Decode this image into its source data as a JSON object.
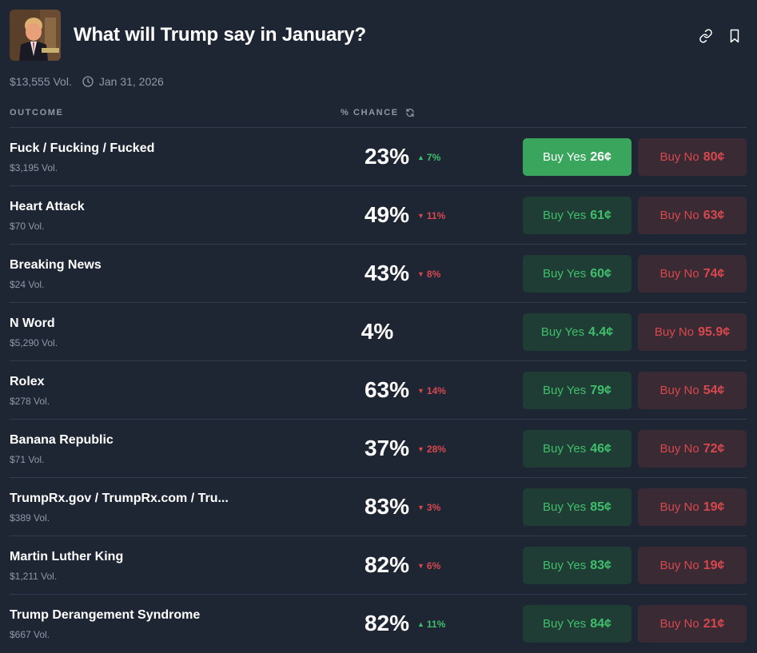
{
  "header": {
    "title": "What will Trump say in January?",
    "volume": "$13,555 Vol.",
    "end_date": "Jan 31, 2026"
  },
  "columns": {
    "outcome": "OUTCOME",
    "chance": "% CHANCE"
  },
  "colors": {
    "background": "#1e2634",
    "yes": "#3fbf6b",
    "no": "#d7484e"
  },
  "rows": [
    {
      "name": "Fuck / Fucking / Fucked",
      "volume": "$3,195 Vol.",
      "chance": "23%",
      "delta": "7%",
      "direction": "up",
      "yes_label": "Buy Yes",
      "yes_price": "26¢",
      "no_label": "Buy No",
      "no_price": "80¢",
      "yes_active": true
    },
    {
      "name": "Heart Attack",
      "volume": "$70 Vol.",
      "chance": "49%",
      "delta": "11%",
      "direction": "down",
      "yes_label": "Buy Yes",
      "yes_price": "61¢",
      "no_label": "Buy No",
      "no_price": "63¢"
    },
    {
      "name": "Breaking News",
      "volume": "$24 Vol.",
      "chance": "43%",
      "delta": "8%",
      "direction": "down",
      "yes_label": "Buy Yes",
      "yes_price": "60¢",
      "no_label": "Buy No",
      "no_price": "74¢"
    },
    {
      "name": "N Word",
      "volume": "$5,290 Vol.",
      "chance": "4%",
      "delta": "",
      "direction": "none",
      "yes_label": "Buy Yes",
      "yes_price": "4.4¢",
      "no_label": "Buy No",
      "no_price": "95.9¢"
    },
    {
      "name": "Rolex",
      "volume": "$278 Vol.",
      "chance": "63%",
      "delta": "14%",
      "direction": "down",
      "yes_label": "Buy Yes",
      "yes_price": "79¢",
      "no_label": "Buy No",
      "no_price": "54¢"
    },
    {
      "name": "Banana Republic",
      "volume": "$71 Vol.",
      "chance": "37%",
      "delta": "28%",
      "direction": "down",
      "yes_label": "Buy Yes",
      "yes_price": "46¢",
      "no_label": "Buy No",
      "no_price": "72¢"
    },
    {
      "name": "TrumpRx.gov / TrumpRx.com / Tru...",
      "volume": "$389 Vol.",
      "chance": "83%",
      "delta": "3%",
      "direction": "down",
      "yes_label": "Buy Yes",
      "yes_price": "85¢",
      "no_label": "Buy No",
      "no_price": "19¢"
    },
    {
      "name": "Martin Luther King",
      "volume": "$1,211 Vol.",
      "chance": "82%",
      "delta": "6%",
      "direction": "down",
      "yes_label": "Buy Yes",
      "yes_price": "83¢",
      "no_label": "Buy No",
      "no_price": "19¢"
    },
    {
      "name": "Trump Derangement Syndrome",
      "volume": "$667 Vol.",
      "chance": "82%",
      "delta": "11%",
      "direction": "up",
      "yes_label": "Buy Yes",
      "yes_price": "84¢",
      "no_label": "Buy No",
      "no_price": "21¢"
    }
  ]
}
